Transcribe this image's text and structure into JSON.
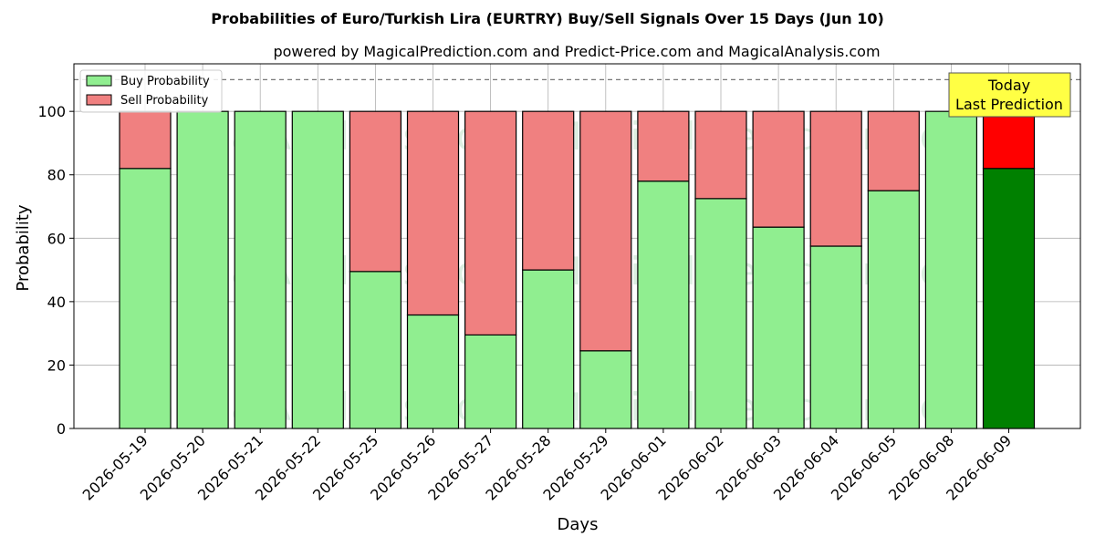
{
  "chart_data": {
    "type": "bar",
    "stacked": true,
    "title": "Probabilities of Euro/Turkish Lira (EURTRY) Buy/Sell Signals Over 15 Days (Jun 10)",
    "subtitle": "powered by MagicalPrediction.com and Predict-Price.com and MagicalAnalysis.com",
    "xlabel": "Days",
    "ylabel": "Probability",
    "ylim": [
      0,
      115
    ],
    "yticks": [
      0,
      20,
      40,
      60,
      80,
      100
    ],
    "grid": true,
    "legend_position": "top-left",
    "reference_line": 110,
    "categories": [
      "2026-05-19",
      "2026-05-20",
      "2026-05-21",
      "2026-05-22",
      "2026-05-25",
      "2026-05-26",
      "2026-05-27",
      "2026-05-28",
      "2026-05-29",
      "2026-06-01",
      "2026-06-02",
      "2026-06-03",
      "2026-06-04",
      "2026-06-05",
      "2026-06-08",
      "2026-06-09"
    ],
    "series": [
      {
        "name": "Buy Probability",
        "color": "#90ee90",
        "values": [
          82,
          100,
          100,
          100,
          49.5,
          35.8,
          29.5,
          50,
          24.5,
          78,
          72.5,
          63.5,
          57.5,
          75,
          100,
          82
        ]
      },
      {
        "name": "Sell Probability",
        "color": "#f08080",
        "values": [
          18,
          0,
          0,
          0,
          50.5,
          64.2,
          70.5,
          50,
          75.5,
          22,
          27.5,
          36.5,
          42.5,
          25,
          0,
          18
        ]
      }
    ],
    "highlight": {
      "index": 15,
      "buy_color": "#008000",
      "sell_color": "#ff0000"
    },
    "annotation": {
      "lines": [
        "Today",
        "Last Prediction"
      ],
      "bg": "#ffff44"
    },
    "watermarks": [
      "MagicalAnalysis.com",
      "MagicalPrediction.com"
    ]
  }
}
